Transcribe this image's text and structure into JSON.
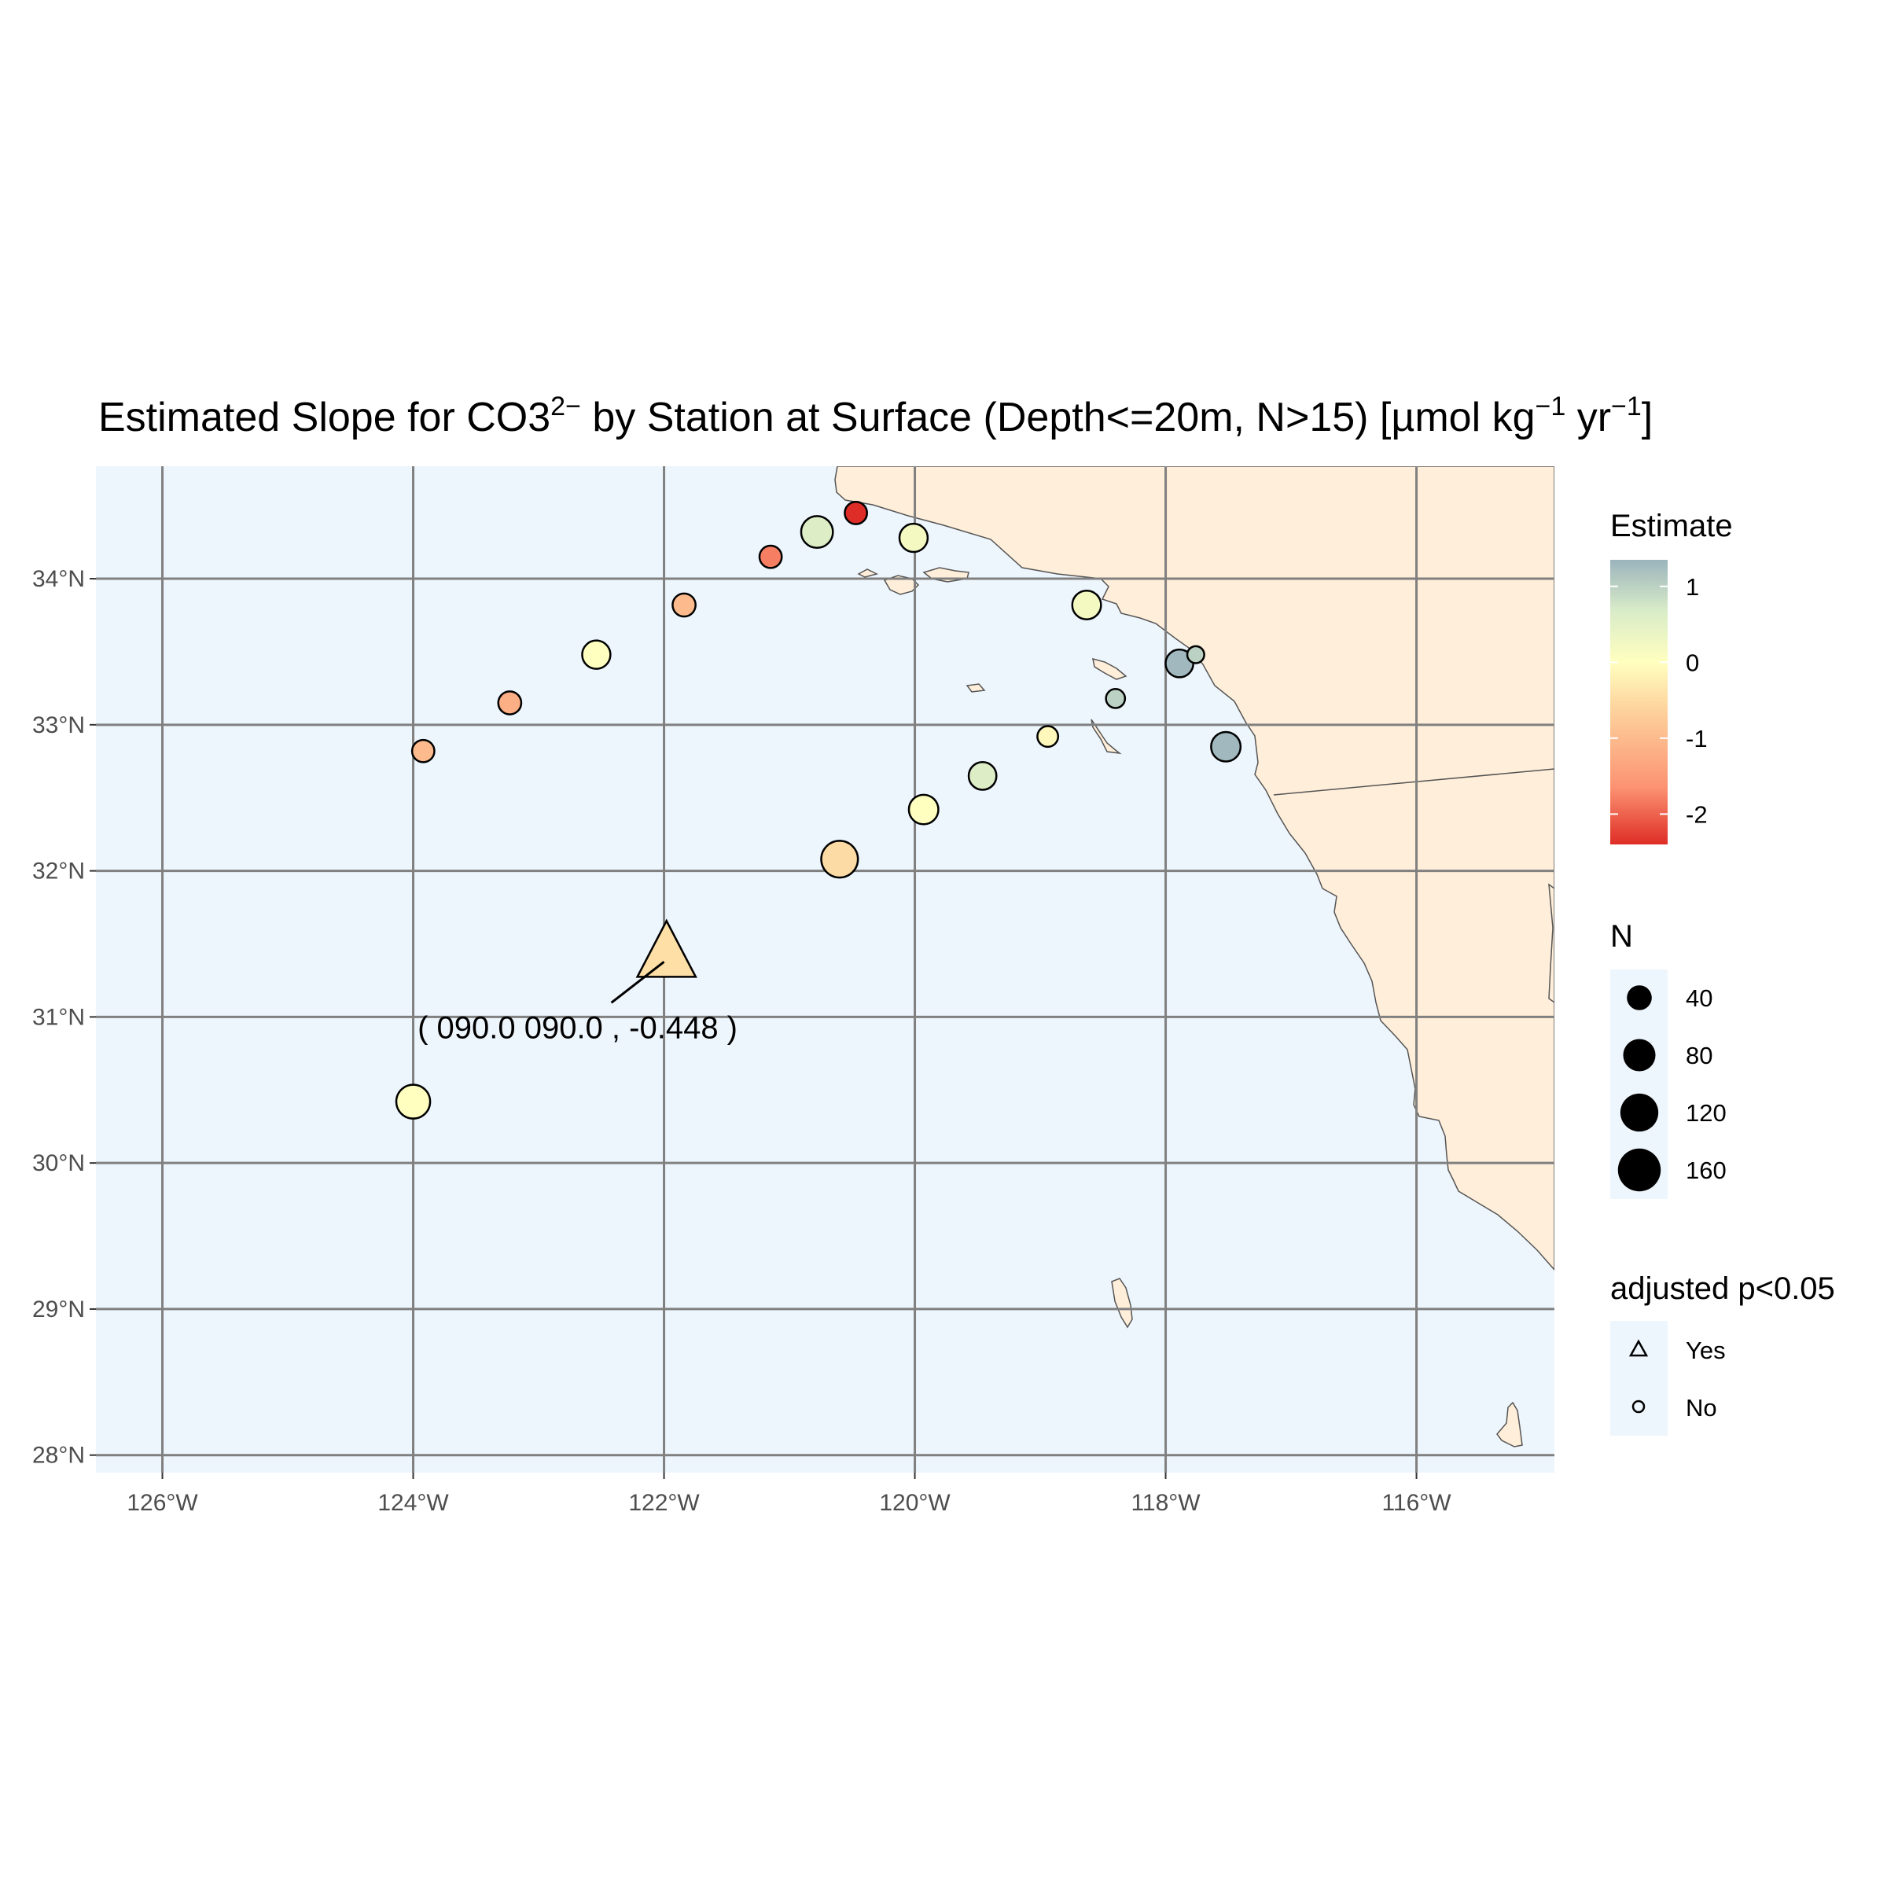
{
  "title": {
    "prefix": "Estimated Slope for CO3",
    "sup1": "2−",
    "mid": " by Station at Surface (Depth<=20m, N>15) [µmol kg",
    "sup2": "−1",
    "mid2": " yr",
    "sup3": "−1",
    "suffix": "]"
  },
  "axes": {
    "x_ticks": [
      {
        "value": -126,
        "label": "126°W"
      },
      {
        "value": -124,
        "label": "124°W"
      },
      {
        "value": -122,
        "label": "122°W"
      },
      {
        "value": -120,
        "label": "120°W"
      },
      {
        "value": -118,
        "label": "118°W"
      },
      {
        "value": -116,
        "label": "116°W"
      }
    ],
    "y_ticks": [
      {
        "value": 28,
        "label": "28°N"
      },
      {
        "value": 29,
        "label": "29°N"
      },
      {
        "value": 30,
        "label": "30°N"
      },
      {
        "value": 31,
        "label": "31°N"
      },
      {
        "value": 32,
        "label": "32°N"
      },
      {
        "value": 33,
        "label": "33°N"
      },
      {
        "value": 34,
        "label": "34°N"
      }
    ],
    "xlim": [
      -126.53,
      -114.9
    ],
    "ylim": [
      27.88,
      34.77
    ]
  },
  "colors": {
    "ocean": "#eef6fd",
    "land": "#ffeed9",
    "grid": "#808080",
    "scale": [
      "#de2d26",
      "#fc9272",
      "#fdd49e",
      "#ffffbf",
      "#d9ecc8",
      "#9bb4bd"
    ]
  },
  "chart_data": {
    "type": "scatter",
    "stations": [
      {
        "lon": -120.47,
        "lat": 34.45,
        "estimate": -2.4,
        "n": 20,
        "significant": false
      },
      {
        "lon": -120.78,
        "lat": 34.32,
        "estimate": 0.6,
        "n": 55,
        "significant": false
      },
      {
        "lon": -120.01,
        "lat": 34.28,
        "estimate": 0.2,
        "n": 40,
        "significant": false
      },
      {
        "lon": -121.15,
        "lat": 34.15,
        "estimate": -1.8,
        "n": 20,
        "significant": false
      },
      {
        "lon": -121.84,
        "lat": 33.82,
        "estimate": -1.0,
        "n": 22,
        "significant": false
      },
      {
        "lon": -118.63,
        "lat": 33.82,
        "estimate": 0.2,
        "n": 42,
        "significant": false
      },
      {
        "lon": -122.54,
        "lat": 33.48,
        "estimate": 0.0,
        "n": 40,
        "significant": false
      },
      {
        "lon": -117.89,
        "lat": 33.42,
        "estimate": 1.3,
        "n": 38,
        "significant": false
      },
      {
        "lon": -117.76,
        "lat": 33.48,
        "estimate": 1.0,
        "n": 8,
        "significant": false
      },
      {
        "lon": -118.4,
        "lat": 33.18,
        "estimate": 1.0,
        "n": 12,
        "significant": false
      },
      {
        "lon": -123.23,
        "lat": 33.15,
        "estimate": -1.2,
        "n": 22,
        "significant": false
      },
      {
        "lon": -118.94,
        "lat": 32.92,
        "estimate": -0.1,
        "n": 16,
        "significant": false
      },
      {
        "lon": -123.92,
        "lat": 32.82,
        "estimate": -1.0,
        "n": 20,
        "significant": false
      },
      {
        "lon": -117.52,
        "lat": 32.85,
        "estimate": 1.3,
        "n": 45,
        "significant": false
      },
      {
        "lon": -119.46,
        "lat": 32.65,
        "estimate": 0.6,
        "n": 38,
        "significant": false
      },
      {
        "lon": -119.93,
        "lat": 32.42,
        "estimate": 0.0,
        "n": 45,
        "significant": false
      },
      {
        "lon": -120.6,
        "lat": 32.08,
        "estimate": -0.5,
        "n": 80,
        "significant": false
      },
      {
        "lon": -121.98,
        "lat": 31.42,
        "estimate": -0.448,
        "n": 160,
        "significant": true
      },
      {
        "lon": -124.0,
        "lat": 30.42,
        "estimate": 0.0,
        "n": 65,
        "significant": false
      }
    ],
    "annotation": {
      "text": "( 090.0 090.0 , -0.448 )",
      "lon": -122.0,
      "lat": 31.42
    }
  },
  "legend": {
    "estimate": {
      "title": "Estimate",
      "ticks": [
        {
          "value": 1,
          "label": "1"
        },
        {
          "value": 0,
          "label": "0"
        },
        {
          "value": -1,
          "label": "-1"
        },
        {
          "value": -2,
          "label": "-2"
        }
      ],
      "range": [
        -2.4,
        1.35
      ]
    },
    "n": {
      "title": "N",
      "items": [
        {
          "value": 40,
          "label": "40"
        },
        {
          "value": 80,
          "label": "80"
        },
        {
          "value": 120,
          "label": "120"
        },
        {
          "value": 160,
          "label": "160"
        }
      ]
    },
    "sig": {
      "title": "adjusted p<0.05",
      "items": [
        {
          "shape": "triangle",
          "label": "Yes"
        },
        {
          "shape": "circle",
          "label": "No"
        }
      ]
    }
  }
}
